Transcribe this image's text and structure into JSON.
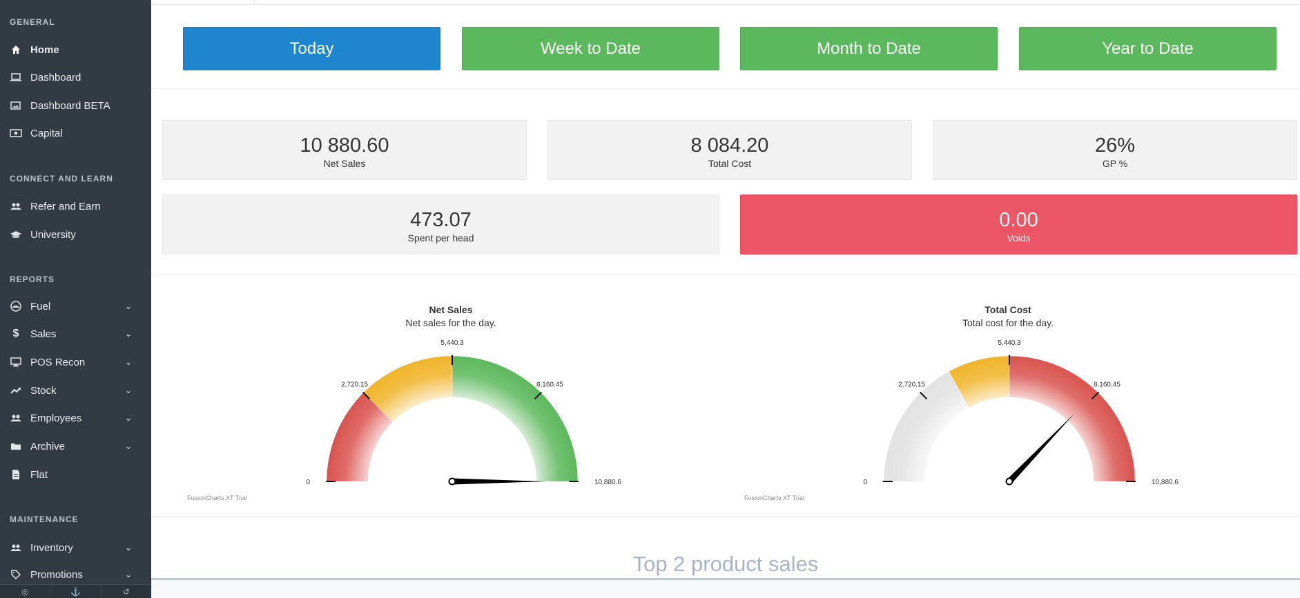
{
  "sidebar": {
    "sections": {
      "general": "GENERAL",
      "connect": "CONNECT AND LEARN",
      "reports": "REPORTS",
      "maintenance": "MAINTENANCE"
    },
    "items": {
      "home": {
        "label": "Home",
        "icon": "home-icon"
      },
      "dashboard": {
        "label": "Dashboard",
        "icon": "monitor-icon"
      },
      "dashboard_beta": {
        "label": "Dashboard BETA",
        "icon": "image-icon"
      },
      "capital": {
        "label": "Capital",
        "icon": "money-icon"
      },
      "refer": {
        "label": "Refer and Earn",
        "icon": "users-icon"
      },
      "university": {
        "label": "University",
        "icon": "graduation-cap-icon"
      },
      "fuel": {
        "label": "Fuel",
        "icon": "gauge-icon"
      },
      "sales": {
        "label": "Sales",
        "icon": "dollar-icon"
      },
      "pos_recon": {
        "label": "POS Recon",
        "icon": "desktop-icon"
      },
      "stock": {
        "label": "Stock",
        "icon": "trending-up-icon"
      },
      "employees": {
        "label": "Employees",
        "icon": "users-icon"
      },
      "archive": {
        "label": "Archive",
        "icon": "folder-icon"
      },
      "flat": {
        "label": "Flat",
        "icon": "file-icon"
      },
      "inventory": {
        "label": "Inventory",
        "icon": "users-icon"
      },
      "promotions": {
        "label": "Promotions",
        "icon": "tag-icon"
      }
    }
  },
  "periods": {
    "today": "Today",
    "week": "Week to Date",
    "month": "Month to Date",
    "year": "Year to Date"
  },
  "colors": {
    "sidebar": "#323b44",
    "primary": "#1e86cf",
    "success": "#5cb85c",
    "danger": "#ec5564"
  },
  "stats": {
    "net_sales": {
      "value": "10 880.60",
      "label": "Net Sales"
    },
    "total_cost": {
      "value": "8 084.20",
      "label": "Total Cost"
    },
    "gp": {
      "value": "26%",
      "label": "GP %"
    },
    "spent_per_head": {
      "value": "473.07",
      "label": "Spent per head"
    },
    "voids": {
      "value": "0.00",
      "label": "Voids"
    }
  },
  "gauges": [
    {
      "title": "Net Sales",
      "subtitle": "Net sales for the day.",
      "min": 0,
      "max": 10880.6,
      "value": 10880.6,
      "ticks": [
        "0",
        "2,720.15",
        "5,440.3",
        "8,160.45",
        "10,880.6"
      ],
      "bands": [
        {
          "from": 0,
          "to": 2720.15,
          "color": "#d9534f"
        },
        {
          "from": 2720.15,
          "to": 5440.3,
          "color": "#f0b429"
        },
        {
          "from": 5440.3,
          "to": 10880.6,
          "color": "#5cb85c"
        }
      ],
      "trial": "FusionCharts XT Trial"
    },
    {
      "title": "Total Cost",
      "subtitle": "Total cost for the day.",
      "min": 0,
      "max": 10880.6,
      "value": 8084.2,
      "ticks": [
        "0",
        "2,720.15",
        "5,440.3",
        "8,160.45",
        "10,880.6"
      ],
      "bands": [
        {
          "from": 0,
          "to": 3700,
          "color": "#e2e2e2"
        },
        {
          "from": 3700,
          "to": 5440.3,
          "color": "#f0b429"
        },
        {
          "from": 5440.3,
          "to": 10880.6,
          "color": "#d9534f"
        }
      ],
      "trial": "FusionCharts XT Trial"
    }
  ],
  "top_products": {
    "title": "Top 2 product sales"
  }
}
